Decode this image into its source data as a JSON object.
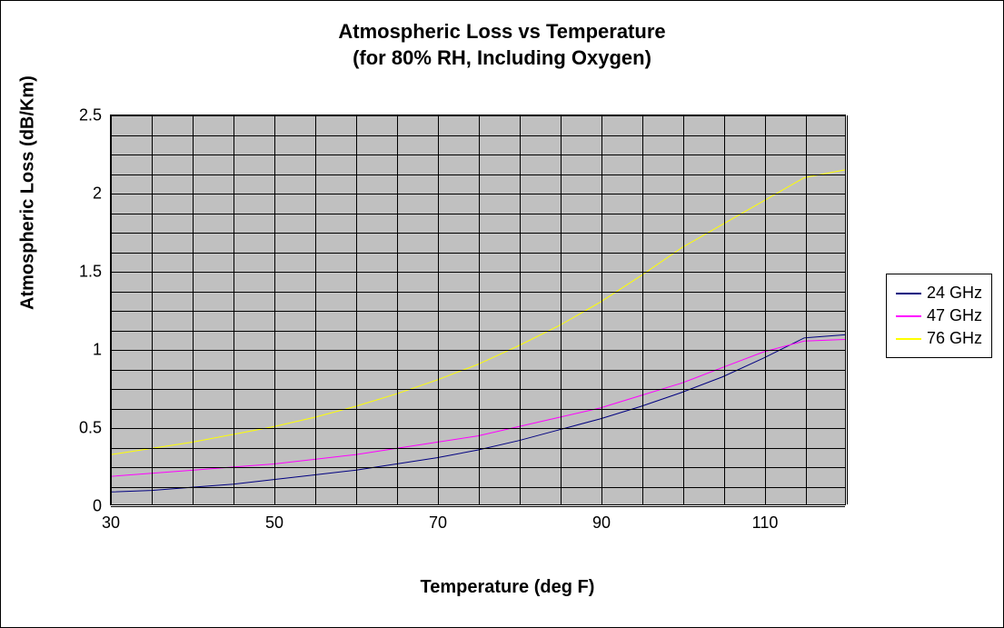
{
  "chart": {
    "type": "line",
    "title_line1": "Atmospheric Loss vs Temperature",
    "title_line2": "(for 80% RH, Including Oxygen)",
    "title_fontsize": 22,
    "title_fontweight": "bold",
    "background_color": "#ffffff",
    "plot_background_color": "#c0c0c0",
    "grid_color": "#000000",
    "border_color": "#000000",
    "outer_border_color": "#000000",
    "axis_label_fontsize": 20,
    "axis_label_fontweight": "bold",
    "tick_fontsize": 18,
    "x_axis": {
      "label": "Temperature (deg F)",
      "min": 30,
      "max": 120,
      "major_ticks": [
        30,
        50,
        70,
        90,
        110
      ],
      "grid_step": 5
    },
    "y_axis": {
      "label": "Atmospheric Loss (dB/Km)",
      "min": 0,
      "max": 2.5,
      "major_ticks": [
        0,
        0.5,
        1,
        1.5,
        2,
        2.5
      ],
      "grid_step": 0.125
    },
    "series": [
      {
        "name": "24 GHz",
        "color": "#000080",
        "line_width": 1,
        "x": [
          30,
          35,
          40,
          45,
          50,
          55,
          60,
          65,
          70,
          75,
          80,
          85,
          90,
          95,
          100,
          105,
          110,
          115,
          120
        ],
        "y": [
          0.08,
          0.09,
          0.11,
          0.13,
          0.16,
          0.19,
          0.22,
          0.26,
          0.3,
          0.35,
          0.41,
          0.48,
          0.55,
          0.63,
          0.72,
          0.82,
          0.94,
          1.07,
          1.09
        ]
      },
      {
        "name": "47 GHz",
        "color": "#ff00ff",
        "line_width": 1,
        "x": [
          30,
          35,
          40,
          45,
          50,
          55,
          60,
          65,
          70,
          75,
          80,
          85,
          90,
          95,
          100,
          105,
          110,
          115,
          120
        ],
        "y": [
          0.18,
          0.2,
          0.22,
          0.24,
          0.26,
          0.29,
          0.32,
          0.36,
          0.4,
          0.44,
          0.5,
          0.56,
          0.62,
          0.7,
          0.78,
          0.88,
          0.98,
          1.05,
          1.06
        ]
      },
      {
        "name": "76 GHz",
        "color": "#ffff00",
        "line_width": 1,
        "x": [
          30,
          35,
          40,
          45,
          50,
          55,
          60,
          65,
          70,
          75,
          80,
          85,
          90,
          95,
          100,
          105,
          110,
          115,
          120
        ],
        "y": [
          0.32,
          0.36,
          0.4,
          0.45,
          0.5,
          0.56,
          0.63,
          0.71,
          0.8,
          0.9,
          1.02,
          1.15,
          1.3,
          1.47,
          1.65,
          1.8,
          1.95,
          2.1,
          2.15
        ]
      }
    ],
    "legend": {
      "position": "right",
      "border_color": "#000000",
      "background_color": "#ffffff",
      "fontsize": 18
    }
  }
}
